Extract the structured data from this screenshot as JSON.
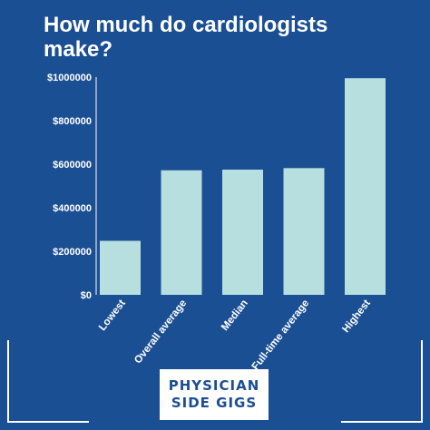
{
  "title_line1": "How much do cardiologists",
  "title_line2": "make?",
  "colors": {
    "background": "#1b4f93",
    "bar": "#b7dfe0",
    "text": "#ffffff",
    "brand_text": "#1b4f93"
  },
  "brand": {
    "line1": "PHYSICIAN",
    "line2": "SIDE GIGS"
  },
  "chart_data": {
    "type": "bar",
    "title": "How much do cardiologists make?",
    "categories": [
      "Lowest",
      "Overall average",
      "Median",
      "Full-time average",
      "Highest"
    ],
    "values": [
      248000,
      572000,
      575000,
      582000,
      995000
    ],
    "yticks": [
      "$0",
      "$200000",
      "$400000",
      "$600000",
      "$800000",
      "$1000000"
    ],
    "ylim": [
      0,
      1000000
    ],
    "grid": false,
    "legend": "none"
  }
}
